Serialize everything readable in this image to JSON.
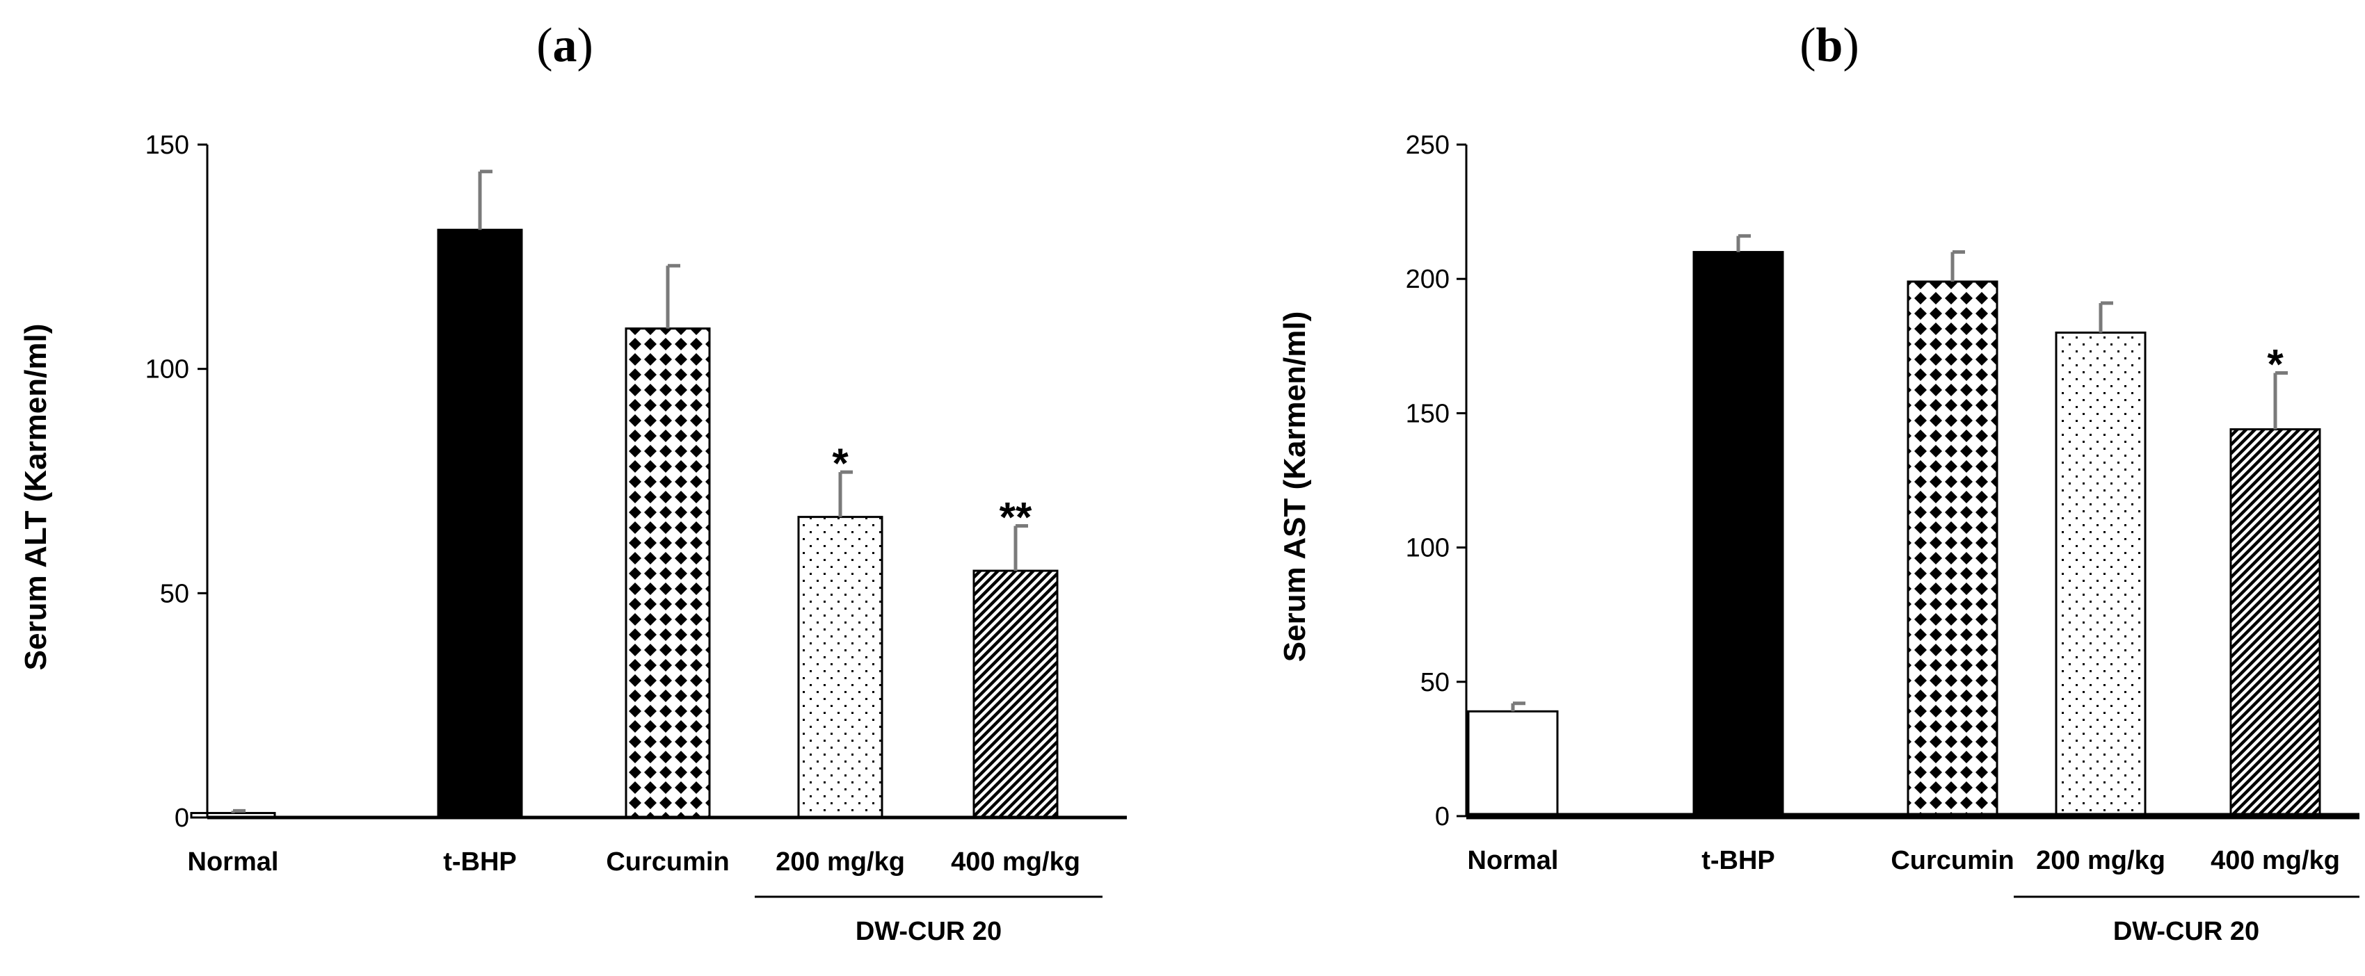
{
  "figure": {
    "background": "#ffffff",
    "axis_color": "#000000",
    "error_bar_color": "#7a7a7a"
  },
  "chart_data": [
    {
      "panel": "a",
      "type": "bar",
      "title_prefix": "(",
      "title_letter": "a",
      "title_suffix": ")",
      "ylabel": "Serum ALT (Karmen/ml)",
      "xlabel": "",
      "ylim": [
        0,
        150
      ],
      "yticks": [
        0,
        50,
        100,
        150
      ],
      "categories": [
        "Normal",
        "t-BHP",
        "Curcumin",
        "200 mg/kg",
        "400 mg/kg"
      ],
      "values": [
        1,
        131,
        109,
        67,
        55
      ],
      "errors": [
        0.5,
        13,
        14,
        10,
        10
      ],
      "fills": [
        "white",
        "black",
        "diamond",
        "dots",
        "hatch"
      ],
      "annotations": [
        "",
        "",
        "",
        "*",
        "**"
      ],
      "group_label": {
        "text": "DW-CUR 20",
        "from": 3,
        "to": 4
      },
      "grid": false
    },
    {
      "panel": "b",
      "type": "bar",
      "title_prefix": "(",
      "title_letter": "b",
      "title_suffix": ")",
      "ylabel": "Serum AST (Karmen/ml)",
      "xlabel": "",
      "ylim": [
        0,
        250
      ],
      "yticks": [
        0,
        50,
        100,
        150,
        200,
        250
      ],
      "categories": [
        "Normal",
        "t-BHP",
        "Curcumin",
        "200 mg/kg",
        "400 mg/kg"
      ],
      "values": [
        39,
        210,
        199,
        180,
        144
      ],
      "errors": [
        3,
        6,
        11,
        11,
        21
      ],
      "fills": [
        "white",
        "black",
        "diamond",
        "dots",
        "hatch"
      ],
      "annotations": [
        "",
        "",
        "",
        "",
        "*"
      ],
      "group_label": {
        "text": "DW-CUR 20",
        "from": 3,
        "to": 4
      },
      "grid": false
    }
  ]
}
